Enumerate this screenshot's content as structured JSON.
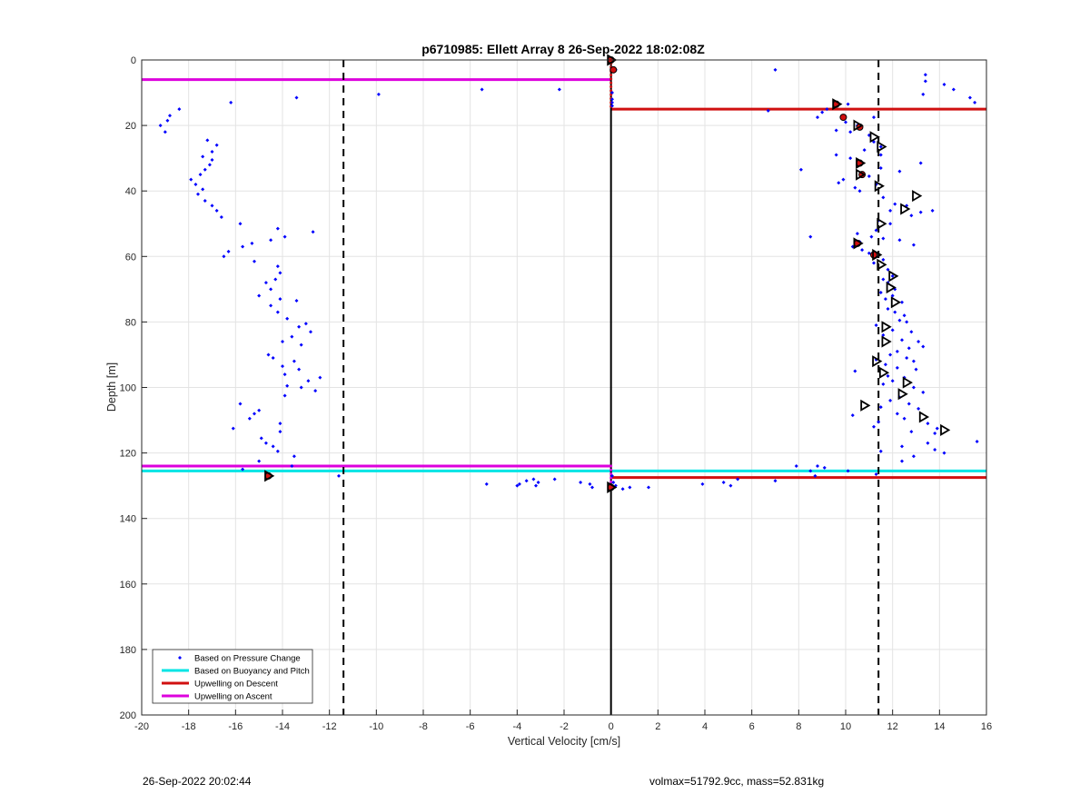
{
  "figure": {
    "title": "p6710985: Ellett Array 8 26-Sep-2022 18:02:08Z",
    "footer_left": "26-Sep-2022 20:02:44",
    "footer_right": "volmax=51792.9cc, mass=52.831kg"
  },
  "chart_data": {
    "type": "scatter",
    "title": "p6710985: Ellett Array 8 26-Sep-2022 18:02:08Z",
    "xlabel": "Vertical Velocity [cm/s]",
    "ylabel": "Depth [m]",
    "xlim": [
      -20,
      16
    ],
    "ylim": [
      0,
      200
    ],
    "y_reversed": true,
    "grid": true,
    "legend_position": "bottom-left",
    "x_ticks": [
      -20,
      -18,
      -16,
      -14,
      -12,
      -10,
      -8,
      -6,
      -4,
      -2,
      0,
      2,
      4,
      6,
      8,
      10,
      12,
      14,
      16
    ],
    "y_ticks": [
      0,
      20,
      40,
      60,
      80,
      100,
      120,
      140,
      160,
      180,
      200
    ],
    "legend": [
      {
        "label": "Based on Pressure Change",
        "color": "#0000ff",
        "kind": "marker"
      },
      {
        "label": "Based on Buoyancy and Pitch",
        "color": "#00e5e5",
        "kind": "line"
      },
      {
        "label": "Upwelling on Descent",
        "color": "#d01010",
        "kind": "line"
      },
      {
        "label": "Upwelling on Ascent",
        "color": "#dd00dd",
        "kind": "line"
      }
    ],
    "colors": {
      "pressure": "#0000ff",
      "buoyancy": "#00e5e5",
      "descent": "#d01010",
      "ascent": "#dd00dd",
      "dashed": "#000000",
      "center": "#000000"
    },
    "dashed_vlines": [
      -11.4,
      11.4
    ],
    "center_vline": {
      "x": 0,
      "y_range": [
        0,
        200
      ]
    },
    "hlines": [
      {
        "series": "ascent",
        "y": 6,
        "x_range": [
          -20,
          0
        ]
      },
      {
        "series": "descent",
        "y": 15,
        "x_range": [
          0,
          16
        ]
      },
      {
        "series": "ascent",
        "y": 124,
        "x_range": [
          -20,
          0
        ]
      },
      {
        "series": "buoyancy",
        "y": 125.5,
        "x_range": [
          -20,
          0
        ]
      },
      {
        "series": "buoyancy",
        "y": 125.5,
        "x_range": [
          0,
          16
        ]
      },
      {
        "series": "descent",
        "y": 127.5,
        "x_range": [
          0,
          16
        ]
      }
    ],
    "pressure_points": [
      [
        -19.2,
        20
      ],
      [
        -19.0,
        22
      ],
      [
        -18.9,
        18.5
      ],
      [
        -18.8,
        17
      ],
      [
        -18.4,
        15
      ],
      [
        -16.2,
        13
      ],
      [
        -13.4,
        11.5
      ],
      [
        -9.9,
        10.5
      ],
      [
        -5.5,
        9
      ],
      [
        -2.2,
        9
      ],
      [
        0.2,
        3
      ],
      [
        7.0,
        3
      ],
      [
        13.4,
        4.5
      ],
      [
        13.4,
        6.5
      ],
      [
        14.2,
        7.5
      ],
      [
        14.6,
        9
      ],
      [
        15.3,
        11.5
      ],
      [
        15.5,
        13
      ],
      [
        13.3,
        10.5
      ],
      [
        -17.2,
        24.5
      ],
      [
        -16.8,
        26
      ],
      [
        -17.0,
        28
      ],
      [
        -17.4,
        29.5
      ],
      [
        -17.0,
        30.5
      ],
      [
        -17.1,
        32
      ],
      [
        -17.3,
        33.5
      ],
      [
        -17.5,
        35
      ],
      [
        -17.9,
        36.5
      ],
      [
        -17.7,
        38
      ],
      [
        -17.4,
        39.5
      ],
      [
        -17.6,
        41
      ],
      [
        -17.3,
        43
      ],
      [
        -17.0,
        44.5
      ],
      [
        -16.8,
        46
      ],
      [
        -16.6,
        48
      ],
      [
        -15.8,
        50
      ],
      [
        -16.3,
        58.5
      ],
      [
        -16.5,
        60
      ],
      [
        -15.7,
        57
      ],
      [
        -15.3,
        56
      ],
      [
        -14.5,
        55
      ],
      [
        -14.2,
        51.5
      ],
      [
        -13.9,
        54
      ],
      [
        -12.7,
        52.5
      ],
      [
        -15.2,
        61.5
      ],
      [
        -14.2,
        63
      ],
      [
        -14.1,
        65
      ],
      [
        -14.3,
        67
      ],
      [
        -14.7,
        68
      ],
      [
        -14.5,
        70
      ],
      [
        -15.0,
        72
      ],
      [
        -14.1,
        73
      ],
      [
        -13.4,
        73.5
      ],
      [
        -14.5,
        75
      ],
      [
        -14.2,
        77
      ],
      [
        -13.8,
        79
      ],
      [
        -13.0,
        80.5
      ],
      [
        -13.3,
        81.5
      ],
      [
        -12.8,
        83
      ],
      [
        -13.6,
        84.5
      ],
      [
        -14.0,
        86
      ],
      [
        -13.2,
        87
      ],
      [
        -14.6,
        90
      ],
      [
        -14.4,
        91
      ],
      [
        -13.5,
        92
      ],
      [
        -14.0,
        93.5
      ],
      [
        -13.3,
        94.5
      ],
      [
        -13.9,
        96
      ],
      [
        -12.4,
        97
      ],
      [
        -12.9,
        98
      ],
      [
        -13.8,
        99.5
      ],
      [
        -13.2,
        100
      ],
      [
        -12.6,
        101
      ],
      [
        -13.9,
        102.5
      ],
      [
        -15.8,
        105
      ],
      [
        -15.0,
        107
      ],
      [
        -15.2,
        108
      ],
      [
        -15.4,
        109.5
      ],
      [
        -14.1,
        111
      ],
      [
        -16.1,
        112.5
      ],
      [
        -14.1,
        113.5
      ],
      [
        -14.9,
        115.5
      ],
      [
        -14.7,
        117
      ],
      [
        -14.4,
        118
      ],
      [
        -14.2,
        119.5
      ],
      [
        -13.5,
        121
      ],
      [
        -15.0,
        122.5
      ],
      [
        -13.6,
        124
      ],
      [
        -15.7,
        125
      ],
      [
        -11.6,
        127
      ],
      [
        6.7,
        15.5
      ],
      [
        9.2,
        15
      ],
      [
        10.1,
        13.5
      ],
      [
        9.0,
        16
      ],
      [
        8.8,
        17.5
      ],
      [
        10.0,
        19
      ],
      [
        10.5,
        20
      ],
      [
        11.2,
        17.5
      ],
      [
        10.2,
        22
      ],
      [
        9.6,
        21.5
      ],
      [
        11.0,
        23
      ],
      [
        11.2,
        25
      ],
      [
        11.5,
        26.5
      ],
      [
        10.8,
        27.5
      ],
      [
        11.5,
        29
      ],
      [
        9.6,
        29
      ],
      [
        10.2,
        30
      ],
      [
        10.5,
        32
      ],
      [
        11.5,
        33
      ],
      [
        13.2,
        31.5
      ],
      [
        12.3,
        34
      ],
      [
        11.0,
        35.5
      ],
      [
        9.9,
        36.5
      ],
      [
        9.7,
        37.5
      ],
      [
        11.3,
        38
      ],
      [
        10.4,
        39
      ],
      [
        10.6,
        40
      ],
      [
        8.1,
        33.5
      ],
      [
        11.6,
        42
      ],
      [
        12.1,
        44
      ],
      [
        12.6,
        44.5
      ],
      [
        11.9,
        46
      ],
      [
        13.2,
        46.5
      ],
      [
        13.7,
        46
      ],
      [
        12.8,
        47.5
      ],
      [
        11.4,
        49
      ],
      [
        11.9,
        50
      ],
      [
        11.3,
        52
      ],
      [
        10.5,
        53
      ],
      [
        8.5,
        54
      ],
      [
        11.1,
        54
      ],
      [
        11.6,
        54.5
      ],
      [
        12.3,
        55
      ],
      [
        10.6,
        55.5
      ],
      [
        10.3,
        57
      ],
      [
        10.7,
        58
      ],
      [
        11.0,
        59
      ],
      [
        12.9,
        56.5
      ],
      [
        11.6,
        61
      ],
      [
        11.2,
        62
      ],
      [
        11.8,
        64
      ],
      [
        12.0,
        66
      ],
      [
        11.6,
        67
      ],
      [
        11.8,
        68
      ],
      [
        12.1,
        70
      ],
      [
        11.5,
        71
      ],
      [
        12.0,
        72
      ],
      [
        11.7,
        73
      ],
      [
        12.4,
        74
      ],
      [
        11.8,
        76
      ],
      [
        12.1,
        77
      ],
      [
        12.5,
        78
      ],
      [
        12.3,
        79.5
      ],
      [
        12.6,
        80
      ],
      [
        11.3,
        81
      ],
      [
        12.0,
        82.5
      ],
      [
        12.8,
        83
      ],
      [
        11.6,
        84
      ],
      [
        12.4,
        85.5
      ],
      [
        13.1,
        86
      ],
      [
        12.7,
        88
      ],
      [
        13.3,
        87.5
      ],
      [
        12.2,
        89
      ],
      [
        11.9,
        90
      ],
      [
        12.6,
        91
      ],
      [
        11.3,
        91.5
      ],
      [
        12.9,
        92
      ],
      [
        11.7,
        93
      ],
      [
        12.2,
        94
      ],
      [
        13.0,
        94.5
      ],
      [
        10.4,
        95
      ],
      [
        11.8,
        96.5
      ],
      [
        12.5,
        97
      ],
      [
        12.0,
        98
      ],
      [
        11.6,
        99
      ],
      [
        12.9,
        100
      ],
      [
        13.3,
        101.5
      ],
      [
        12.3,
        103
      ],
      [
        11.9,
        104
      ],
      [
        12.7,
        105
      ],
      [
        11.5,
        106
      ],
      [
        13.1,
        106.5
      ],
      [
        12.2,
        108
      ],
      [
        10.3,
        108.5
      ],
      [
        12.5,
        109.5
      ],
      [
        11.4,
        110.5
      ],
      [
        13.5,
        111
      ],
      [
        11.2,
        112
      ],
      [
        12.8,
        113.5
      ],
      [
        13.9,
        112.5
      ],
      [
        13.8,
        114
      ],
      [
        13.5,
        117
      ],
      [
        15.6,
        116.5
      ],
      [
        12.4,
        118
      ],
      [
        11.5,
        119.5
      ],
      [
        13.8,
        119
      ],
      [
        12.9,
        121
      ],
      [
        14.2,
        120
      ],
      [
        12.4,
        122.5
      ],
      [
        7.9,
        124
      ],
      [
        8.5,
        125.5
      ],
      [
        8.8,
        124
      ],
      [
        9.1,
        124.5
      ],
      [
        10.1,
        125.5
      ],
      [
        11.3,
        126.5
      ],
      [
        8.7,
        127
      ],
      [
        7.0,
        128.5
      ],
      [
        5.4,
        128
      ],
      [
        4.8,
        129
      ],
      [
        3.9,
        129.5
      ],
      [
        5.1,
        130
      ],
      [
        0.8,
        130.5
      ],
      [
        1.6,
        130.5
      ],
      [
        -0.9,
        129.5
      ],
      [
        -0.8,
        130.5
      ],
      [
        -1.3,
        129
      ],
      [
        -2.4,
        128
      ],
      [
        -3.1,
        129
      ],
      [
        -3.6,
        128.5
      ],
      [
        -3.9,
        129.5
      ],
      [
        -4.0,
        130
      ],
      [
        -3.2,
        130
      ],
      [
        -5.3,
        129.5
      ],
      [
        -3.3,
        128
      ],
      [
        0.5,
        131
      ],
      [
        0.2,
        130
      ],
      [
        0.1,
        129
      ],
      [
        0.05,
        127
      ],
      [
        0.05,
        12
      ],
      [
        0.05,
        13
      ],
      [
        0.05,
        14
      ],
      [
        0.05,
        10
      ]
    ],
    "open_triangles": [
      [
        9.6,
        13.5
      ],
      [
        10.5,
        20
      ],
      [
        11.2,
        23.5
      ],
      [
        11.5,
        26.5
      ],
      [
        10.6,
        31.5
      ],
      [
        10.6,
        35
      ],
      [
        11.4,
        38.5
      ],
      [
        13.0,
        41.5
      ],
      [
        12.5,
        45.5
      ],
      [
        11.5,
        50
      ],
      [
        10.5,
        56
      ],
      [
        11.3,
        59.5
      ],
      [
        11.5,
        62.5
      ],
      [
        12.0,
        66
      ],
      [
        11.9,
        69.5
      ],
      [
        12.1,
        74
      ],
      [
        11.7,
        81.5
      ],
      [
        11.7,
        86
      ],
      [
        11.3,
        92
      ],
      [
        11.6,
        95.5
      ],
      [
        12.6,
        98.5
      ],
      [
        12.4,
        102
      ],
      [
        10.8,
        105.5
      ],
      [
        13.3,
        109
      ],
      [
        14.2,
        113
      ],
      [
        -14.6,
        127
      ],
      [
        0.0,
        0
      ],
      [
        0.0,
        130.5
      ]
    ],
    "red_markers": [
      [
        9.6,
        13.5
      ],
      [
        9.9,
        17.5
      ],
      [
        10.6,
        20.5
      ],
      [
        10.6,
        31.5
      ],
      [
        10.7,
        35
      ],
      [
        10.5,
        56
      ],
      [
        11.2,
        59.5
      ],
      [
        -14.6,
        127
      ],
      [
        0.0,
        130.5
      ],
      [
        0.0,
        0
      ],
      [
        0.1,
        3
      ]
    ]
  }
}
